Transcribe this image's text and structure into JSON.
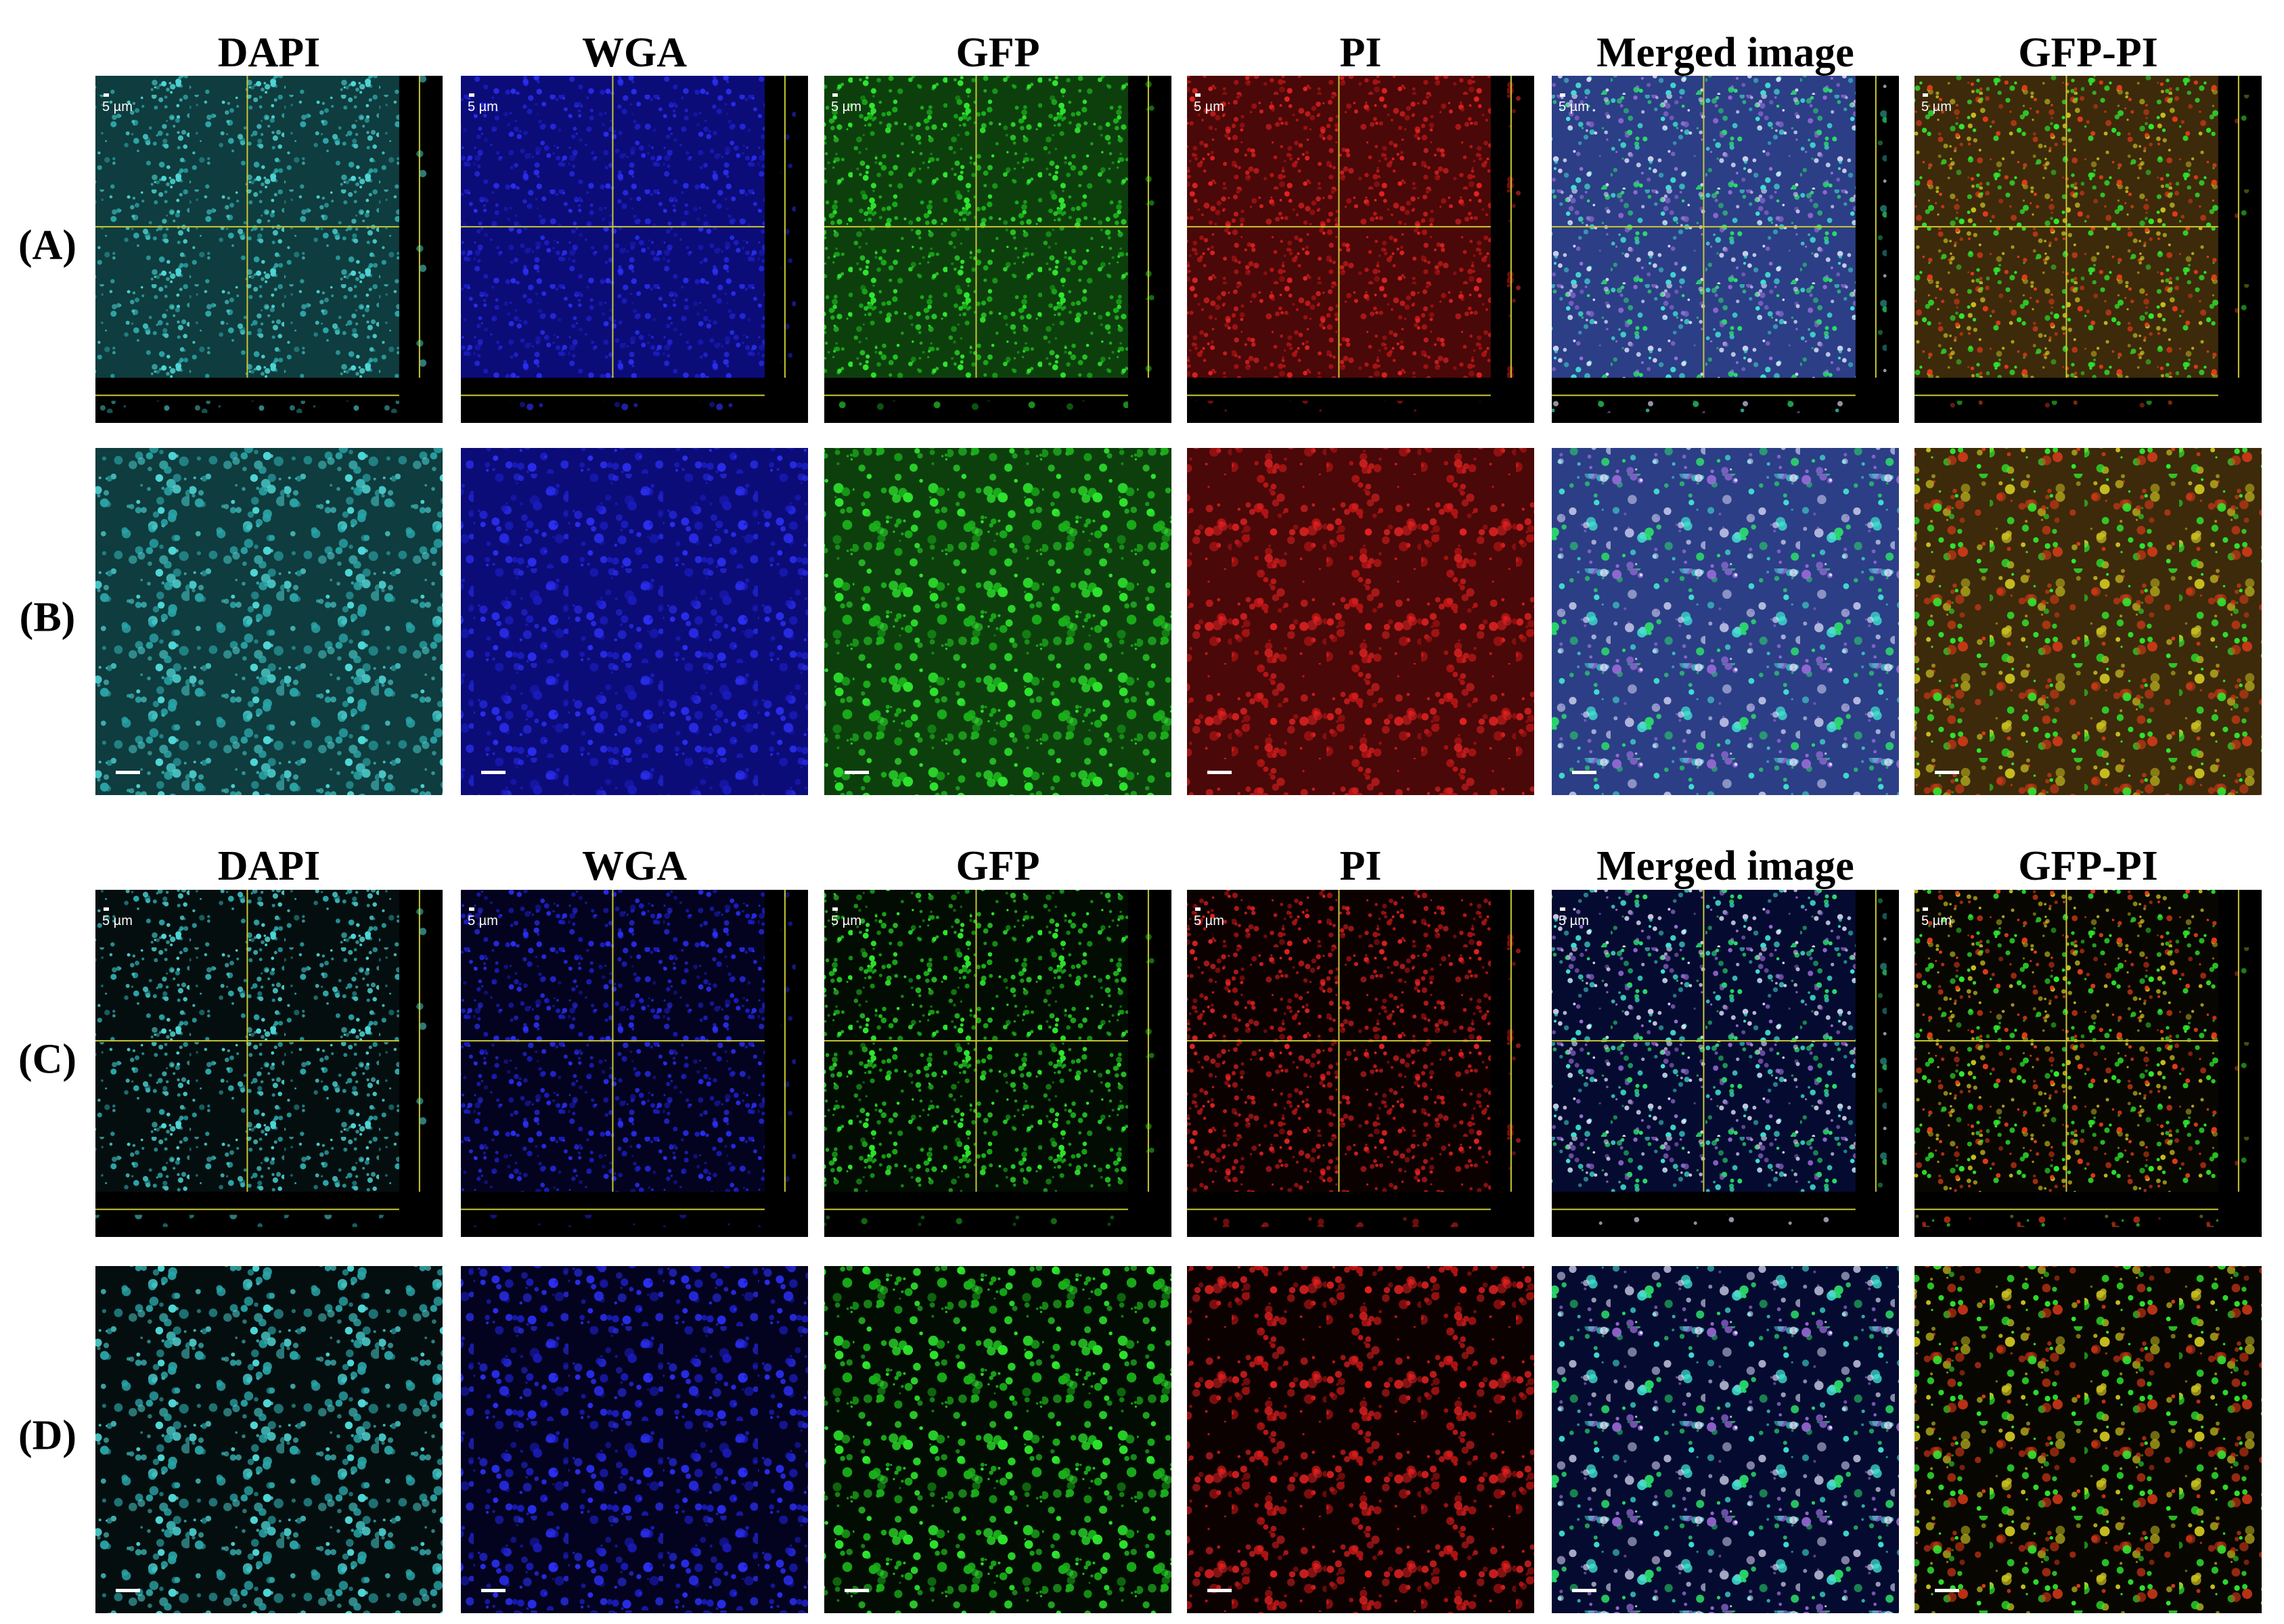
{
  "blocks": [
    {
      "columns": [
        "DAPI",
        "WGA",
        "GFP",
        "PI",
        "Merged image",
        "GFP-PI"
      ],
      "rows": [
        {
          "label": "(A)",
          "scale_bar": "5 µm"
        },
        {
          "label": "(B)"
        }
      ]
    },
    {
      "columns": [
        "DAPI",
        "WGA",
        "GFP",
        "PI",
        "Merged image",
        "GFP-PI"
      ],
      "rows": [
        {
          "label": "(C)",
          "scale_bar": "5 µm"
        },
        {
          "label": "(D)"
        }
      ]
    }
  ]
}
